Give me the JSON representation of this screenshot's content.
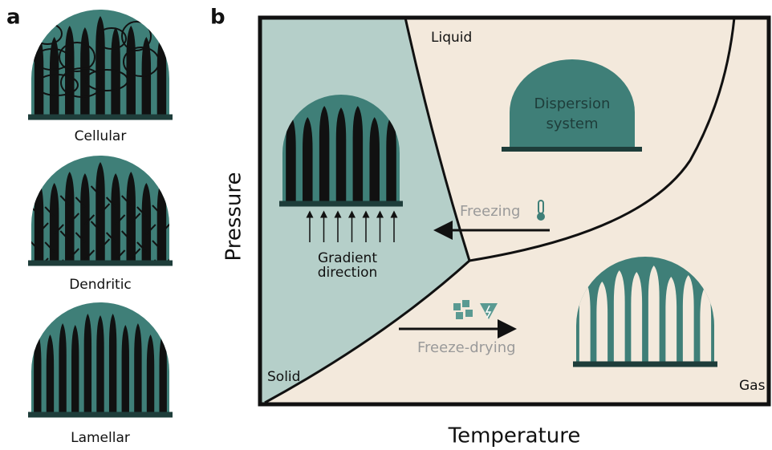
{
  "panel_a": {
    "label": "a",
    "structures": [
      "Cellular",
      "Dendritic",
      "Lamellar"
    ]
  },
  "panel_b": {
    "label": "b",
    "liquid": "Liquid",
    "solid": "Solid",
    "gas": "Gas",
    "dispersion": [
      "Dispersion",
      "system"
    ],
    "freezing": "Freezing",
    "gradient": [
      "Gradient",
      "direction"
    ],
    "freeze_drying": "Freeze-drying",
    "y_axis": "Pressure",
    "x_axis": "Temperature"
  }
}
